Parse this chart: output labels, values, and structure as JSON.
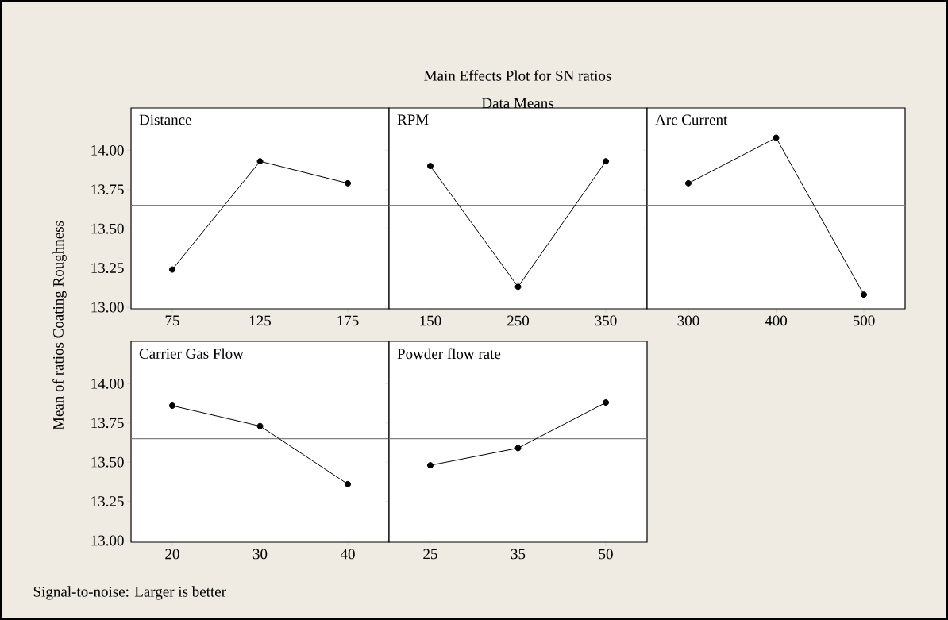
{
  "chart_data": [
    {
      "type": "other",
      "title": "Main Effects Plot for SN ratios",
      "subtitle": "Data Means",
      "ylabel": "Mean of ratios Coating Roughness",
      "annotations": [
        "Signal-to-noise: Larger is better"
      ]
    },
    {
      "type": "line",
      "title": "Distance",
      "categories": [
        "75",
        "125",
        "175"
      ],
      "values": [
        13.24,
        13.93,
        13.79
      ],
      "color": "#000000",
      "marker": "circle",
      "ylim": [
        12.99,
        14.27
      ],
      "yticks": [
        {
          "value": 13,
          "label": "13.00"
        },
        {
          "value": 13.25,
          "label": "13.25"
        },
        {
          "value": 13.5,
          "label": "13.50"
        },
        {
          "value": 13.75,
          "label": "13.75"
        },
        {
          "value": 14,
          "label": "14.00"
        }
      ],
      "ref_lines": [
        {
          "axis": "y",
          "value": 13.65,
          "color": "#808080"
        }
      ]
    },
    {
      "type": "line",
      "title": "RPM",
      "categories": [
        "150",
        "250",
        "350"
      ],
      "values": [
        13.9,
        13.13,
        13.93
      ],
      "color": "#000000",
      "marker": "circle",
      "ylim": [
        12.99,
        14.27
      ],
      "yticks": [
        13,
        13.25,
        13.5,
        13.75,
        14
      ],
      "tick_labels": "x",
      "ref_lines": [
        {
          "axis": "y",
          "value": 13.65,
          "color": "#808080"
        }
      ]
    },
    {
      "type": "line",
      "title": "Arc Current",
      "categories": [
        "300",
        "400",
        "500"
      ],
      "values": [
        13.79,
        14.08,
        13.08
      ],
      "color": "#000000",
      "marker": "circle",
      "ylim": [
        12.99,
        14.27
      ],
      "yticks": [
        13,
        13.25,
        13.5,
        13.75,
        14
      ],
      "tick_labels": "x",
      "ref_lines": [
        {
          "axis": "y",
          "value": 13.65,
          "color": "#808080"
        }
      ]
    },
    {
      "type": "line",
      "title": "Carrier Gas Flow",
      "categories": [
        "20",
        "30",
        "40"
      ],
      "values": [
        13.86,
        13.73,
        13.36
      ],
      "color": "#000000",
      "marker": "circle",
      "ylim": [
        12.99,
        14.27
      ],
      "yticks": [
        {
          "value": 13,
          "label": "13.00"
        },
        {
          "value": 13.25,
          "label": "13.25"
        },
        {
          "value": 13.5,
          "label": "13.50"
        },
        {
          "value": 13.75,
          "label": "13.75"
        },
        {
          "value": 14,
          "label": "14.00"
        }
      ],
      "ref_lines": [
        {
          "axis": "y",
          "value": 13.65,
          "color": "#808080"
        }
      ]
    },
    {
      "type": "line",
      "title": "Powder flow rate",
      "categories": [
        "25",
        "35",
        "50"
      ],
      "values": [
        13.48,
        13.59,
        13.88
      ],
      "color": "#000000",
      "marker": "circle",
      "ylim": [
        12.99,
        14.27
      ],
      "yticks": [
        13,
        13.25,
        13.5,
        13.75,
        14
      ],
      "tick_labels": "x",
      "ref_lines": [
        {
          "axis": "y",
          "value": 13.65,
          "color": "#808080"
        }
      ]
    }
  ]
}
